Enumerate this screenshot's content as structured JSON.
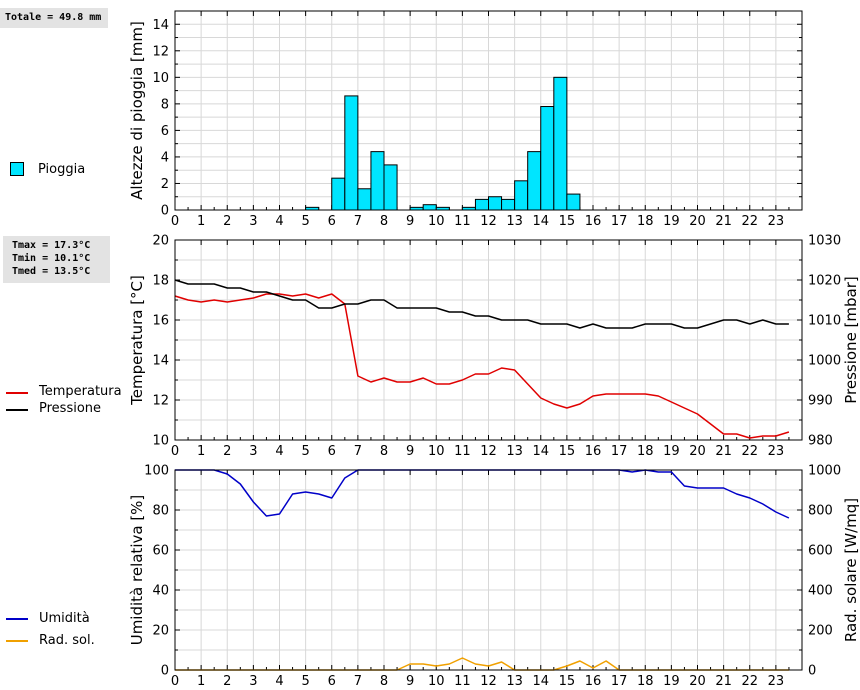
{
  "rain_stats": {
    "total_text": "Totale = 49.8 mm"
  },
  "temp_stats": {
    "tmax_text": "Tmax = 17.3°C",
    "tmin_text": "Tmin = 10.1°C",
    "tmed_text": "Tmed = 13.5°C"
  },
  "legends": {
    "rain": {
      "label": "Pioggia",
      "color": "#00e5ff"
    },
    "temperature": {
      "label": "Temperatura",
      "color": "#e00000"
    },
    "pressure": {
      "label": "Pressione",
      "color": "#000000"
    },
    "humidity": {
      "label": "Umidità",
      "color": "#0000c8"
    },
    "radiation": {
      "label": "Rad. sol.",
      "color": "#f0a000"
    }
  },
  "chart_data": [
    {
      "type": "bar",
      "ylabel": "Altezze di pioggia [mm]",
      "xlim": [
        0,
        24
      ],
      "ylim": [
        0,
        15
      ],
      "xticks": [
        "0",
        "1",
        "2",
        "3",
        "4",
        "5",
        "6",
        "7",
        "8",
        "9",
        "10",
        "11",
        "12",
        "13",
        "14",
        "15",
        "16",
        "17",
        "18",
        "19",
        "20",
        "21",
        "22",
        "23"
      ],
      "yticks": [
        "0",
        "2",
        "4",
        "6",
        "8",
        "10",
        "12",
        "14"
      ],
      "grid": true,
      "bar_width_hours": 0.5,
      "series": [
        {
          "name": "Pioggia",
          "x": [
            5.0,
            6.0,
            6.5,
            7.0,
            7.5,
            8.0,
            9.0,
            9.5,
            10.0,
            11.0,
            11.5,
            12.0,
            12.5,
            13.0,
            13.5,
            14.0,
            14.5,
            15.0
          ],
          "values": [
            0.2,
            2.4,
            8.6,
            1.6,
            4.4,
            3.4,
            0.2,
            0.4,
            0.2,
            0.2,
            0.8,
            1.0,
            0.8,
            2.2,
            4.4,
            7.8,
            10.0,
            1.2
          ]
        }
      ]
    },
    {
      "type": "line",
      "ylabel": "Temperatura [°C]",
      "y2label": "Pressione [mbar]",
      "xlim": [
        0,
        24
      ],
      "ylim": [
        10,
        20
      ],
      "y2lim": [
        980,
        1030
      ],
      "xticks": [
        "0",
        "1",
        "2",
        "3",
        "4",
        "5",
        "6",
        "7",
        "8",
        "9",
        "10",
        "11",
        "12",
        "13",
        "14",
        "15",
        "16",
        "17",
        "18",
        "19",
        "20",
        "21",
        "22",
        "23"
      ],
      "yticks": [
        "10",
        "12",
        "14",
        "16",
        "18",
        "20"
      ],
      "y2ticks": [
        "980",
        "990",
        "1000",
        "1010",
        "1020",
        "1030"
      ],
      "grid": true,
      "series": [
        {
          "name": "Temperatura",
          "axis": "left",
          "x": [
            0,
            0.5,
            1,
            1.5,
            2,
            2.5,
            3,
            3.5,
            4,
            4.5,
            5,
            5.5,
            6,
            6.5,
            7,
            7.5,
            8,
            8.5,
            9,
            9.5,
            10,
            10.5,
            11,
            11.5,
            12,
            12.5,
            13,
            13.5,
            14,
            14.5,
            15,
            15.5,
            16,
            16.5,
            17,
            17.5,
            18,
            18.5,
            19,
            19.5,
            20,
            20.5,
            21,
            21.5,
            22,
            22.5,
            23,
            23.5
          ],
          "values": [
            17.2,
            17.0,
            16.9,
            17.0,
            16.9,
            17.0,
            17.1,
            17.3,
            17.3,
            17.2,
            17.3,
            17.1,
            17.3,
            16.8,
            13.2,
            12.9,
            13.1,
            12.9,
            12.9,
            13.1,
            12.8,
            12.8,
            13.0,
            13.3,
            13.3,
            13.6,
            13.5,
            12.8,
            12.1,
            11.8,
            11.6,
            11.8,
            12.2,
            12.3,
            12.3,
            12.3,
            12.3,
            12.2,
            11.9,
            11.6,
            11.3,
            10.8,
            10.3,
            10.3,
            10.1,
            10.2,
            10.2,
            10.4
          ]
        },
        {
          "name": "Pressione",
          "axis": "right",
          "x": [
            0,
            0.5,
            1,
            1.5,
            2,
            2.5,
            3,
            3.5,
            4,
            4.5,
            5,
            5.5,
            6,
            6.5,
            7,
            7.5,
            8,
            8.5,
            9,
            9.5,
            10,
            10.5,
            11,
            11.5,
            12,
            12.5,
            13,
            13.5,
            14,
            14.5,
            15,
            15.5,
            16,
            16.5,
            17,
            17.5,
            18,
            18.5,
            19,
            19.5,
            20,
            20.5,
            21,
            21.5,
            22,
            22.5,
            23,
            23.5
          ],
          "values": [
            1020,
            1019,
            1019,
            1019,
            1018,
            1018,
            1017,
            1017,
            1016,
            1015,
            1015,
            1013,
            1013,
            1014,
            1014,
            1015,
            1015,
            1013,
            1013,
            1013,
            1013,
            1012,
            1012,
            1011,
            1011,
            1010,
            1010,
            1010,
            1009,
            1009,
            1009,
            1008,
            1009,
            1008,
            1008,
            1008,
            1009,
            1009,
            1009,
            1008,
            1008,
            1009,
            1010,
            1010,
            1009,
            1010,
            1009,
            1009
          ]
        }
      ]
    },
    {
      "type": "line",
      "ylabel": "Umidità relativa [%]",
      "y2label": "Rad. solare [W/mq]",
      "xlim": [
        0,
        24
      ],
      "ylim": [
        0,
        100
      ],
      "y2lim": [
        0,
        1000
      ],
      "xticks": [
        "0",
        "1",
        "2",
        "3",
        "4",
        "5",
        "6",
        "7",
        "8",
        "9",
        "10",
        "11",
        "12",
        "13",
        "14",
        "15",
        "16",
        "17",
        "18",
        "19",
        "20",
        "21",
        "22",
        "23"
      ],
      "yticks": [
        "0",
        "20",
        "40",
        "60",
        "80",
        "100"
      ],
      "y2ticks": [
        "0",
        "200",
        "400",
        "600",
        "800",
        "1000"
      ],
      "grid": true,
      "series": [
        {
          "name": "Umidità",
          "axis": "left",
          "x": [
            0,
            0.5,
            1,
            1.5,
            2,
            2.5,
            3,
            3.5,
            4,
            4.5,
            5,
            5.5,
            6,
            6.5,
            7,
            7.5,
            8,
            8.5,
            9,
            9.5,
            10,
            10.5,
            11,
            11.5,
            12,
            12.5,
            13,
            13.5,
            14,
            14.5,
            15,
            15.5,
            16,
            16.5,
            17,
            17.5,
            18,
            18.5,
            19,
            19.5,
            20,
            20.5,
            21,
            21.5,
            22,
            22.5,
            23,
            23.5
          ],
          "values": [
            100,
            100,
            100,
            100,
            98,
            93,
            84,
            77,
            78,
            88,
            89,
            88,
            86,
            96,
            100,
            100,
            100,
            100,
            100,
            100,
            100,
            100,
            100,
            100,
            100,
            100,
            100,
            100,
            100,
            100,
            100,
            100,
            100,
            100,
            100,
            99,
            100,
            99,
            99,
            92,
            91,
            91,
            91,
            88,
            86,
            83,
            79,
            76
          ]
        },
        {
          "name": "Rad. sol.",
          "axis": "right",
          "x": [
            0,
            0.5,
            1,
            1.5,
            2,
            2.5,
            3,
            3.5,
            4,
            4.5,
            5,
            5.5,
            6,
            6.5,
            7,
            7.5,
            8,
            8.5,
            9,
            9.5,
            10,
            10.5,
            11,
            11.5,
            12,
            12.5,
            13,
            13.5,
            14,
            14.5,
            15,
            15.5,
            16,
            16.5,
            17,
            17.5,
            18,
            18.5,
            19,
            19.5,
            20,
            20.5,
            21,
            21.5,
            22,
            22.5,
            23,
            23.5
          ],
          "values": [
            0,
            0,
            0,
            0,
            0,
            0,
            0,
            0,
            0,
            0,
            0,
            0,
            0,
            0,
            0,
            0,
            0,
            0,
            30,
            30,
            20,
            30,
            60,
            30,
            20,
            40,
            0,
            0,
            0,
            0,
            20,
            45,
            10,
            45,
            0,
            0,
            0,
            0,
            0,
            0,
            0,
            0,
            0,
            0,
            0,
            0,
            0,
            0
          ]
        }
      ]
    }
  ]
}
